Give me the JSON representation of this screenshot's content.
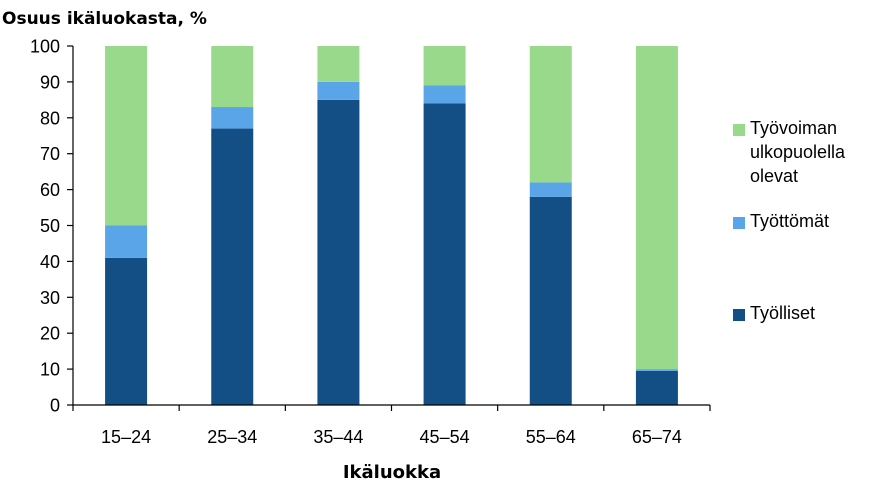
{
  "chart_data": {
    "type": "bar",
    "stacked": true,
    "title": "",
    "ylabel": "Osuus ikäluokasta, %",
    "xlabel": "Ikäluokka",
    "ylim": [
      0,
      100
    ],
    "yticks": [
      "0",
      "10",
      "20",
      "30",
      "40",
      "50",
      "60",
      "70",
      "80",
      "90",
      "100"
    ],
    "categories": [
      "15–24",
      "25–34",
      "35–44",
      "45–54",
      "55–64",
      "65–74"
    ],
    "grid": false,
    "legend_position": "right",
    "series": [
      {
        "name": "Työlliset",
        "color": "#134f84",
        "values": [
          41,
          77,
          85,
          84,
          58,
          9.5
        ]
      },
      {
        "name": "Työttömät",
        "color": "#5aa5e8",
        "values": [
          9,
          6,
          5,
          5,
          4,
          0.5
        ]
      },
      {
        "name": "Työvoiman ulkopuolella olevat",
        "color": "#99d98c",
        "values": [
          50,
          17,
          10,
          11,
          38,
          90
        ]
      }
    ],
    "legend": [
      {
        "lines": [
          "Työvoiman",
          "ulkopuolella",
          "olevat"
        ],
        "color": "#99d98c"
      },
      {
        "lines": [
          "Työttömät"
        ],
        "color": "#5aa5e8"
      },
      {
        "lines": [
          "Työlliset"
        ],
        "color": "#134f84"
      }
    ]
  }
}
